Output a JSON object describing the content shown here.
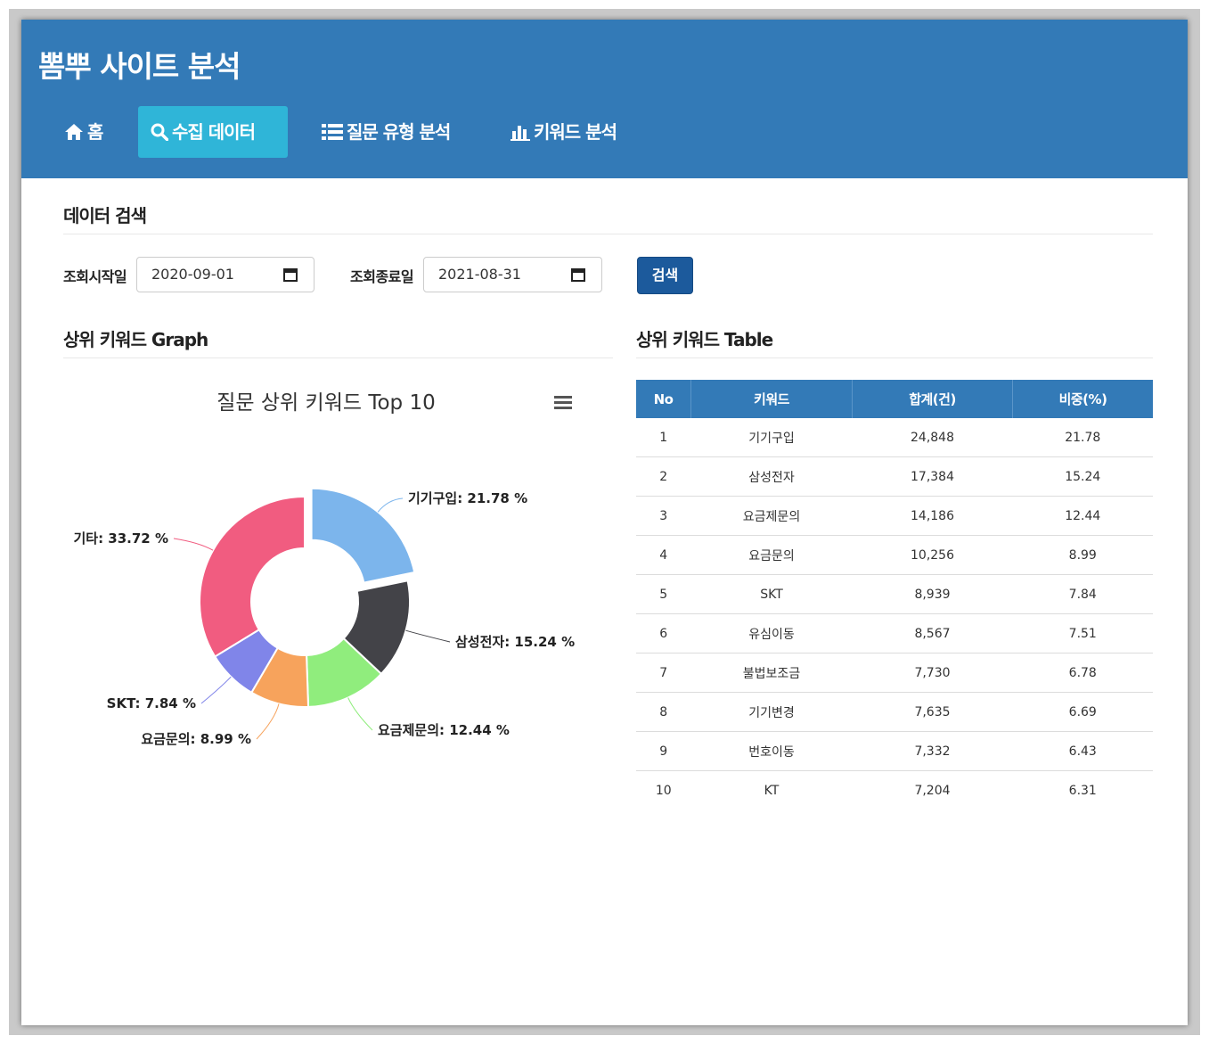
{
  "app_title": "뽐뿌 사이트 분석",
  "nav": [
    {
      "label": "홈",
      "icon": "home-icon"
    },
    {
      "label": "수집 데이터",
      "icon": "search-icon"
    },
    {
      "label": "질문 유형 분석",
      "icon": "list-icon"
    },
    {
      "label": "키워드 분석",
      "icon": "bar-chart-icon"
    }
  ],
  "active_nav": "수집 데이터",
  "search": {
    "title": "데이터 검색",
    "start_label": "조회시작일",
    "start_value": "2020-09-01",
    "end_label": "조회종료일",
    "end_value": "2021-08-31",
    "button_label": "검색"
  },
  "graph_section_title": "상위 키워드 Graph",
  "table_section_title": "상위 키워드 Table",
  "chart_data": {
    "type": "pie",
    "title": "질문 상위 키워드 Top 10",
    "donut": true,
    "slices": [
      {
        "label": "기기구입",
        "value": 21.78,
        "color": "#7cb5ec",
        "sliced": true
      },
      {
        "label": "삼성전자",
        "value": 15.24,
        "color": "#434348"
      },
      {
        "label": "요금제문의",
        "value": 12.44,
        "color": "#90ed7d"
      },
      {
        "label": "요금문의",
        "value": 8.99,
        "color": "#f7a35c"
      },
      {
        "label": "SKT",
        "value": 7.84,
        "color": "#8085e9"
      },
      {
        "label": "기타",
        "value": 33.72,
        "color": "#f15c80"
      }
    ],
    "label_format": "{label}: {value} %"
  },
  "table": {
    "headers": [
      "No",
      "키워드",
      "합계(건)",
      "비중(%)"
    ],
    "rows": [
      [
        "1",
        "기기구입",
        "24,848",
        "21.78"
      ],
      [
        "2",
        "삼성전자",
        "17,384",
        "15.24"
      ],
      [
        "3",
        "요금제문의",
        "14,186",
        "12.44"
      ],
      [
        "4",
        "요금문의",
        "10,256",
        "8.99"
      ],
      [
        "5",
        "SKT",
        "8,939",
        "7.84"
      ],
      [
        "6",
        "유심이동",
        "8,567",
        "7.51"
      ],
      [
        "7",
        "불법보조금",
        "7,730",
        "6.78"
      ],
      [
        "8",
        "기기변경",
        "7,635",
        "6.69"
      ],
      [
        "9",
        "번호이동",
        "7,332",
        "6.43"
      ],
      [
        "10",
        "KT",
        "7,204",
        "6.31"
      ]
    ]
  },
  "colors": {
    "header_bg": "#337ab7",
    "active_nav_bg": "#2fb5d8",
    "search_button": "#1c5a9c"
  }
}
